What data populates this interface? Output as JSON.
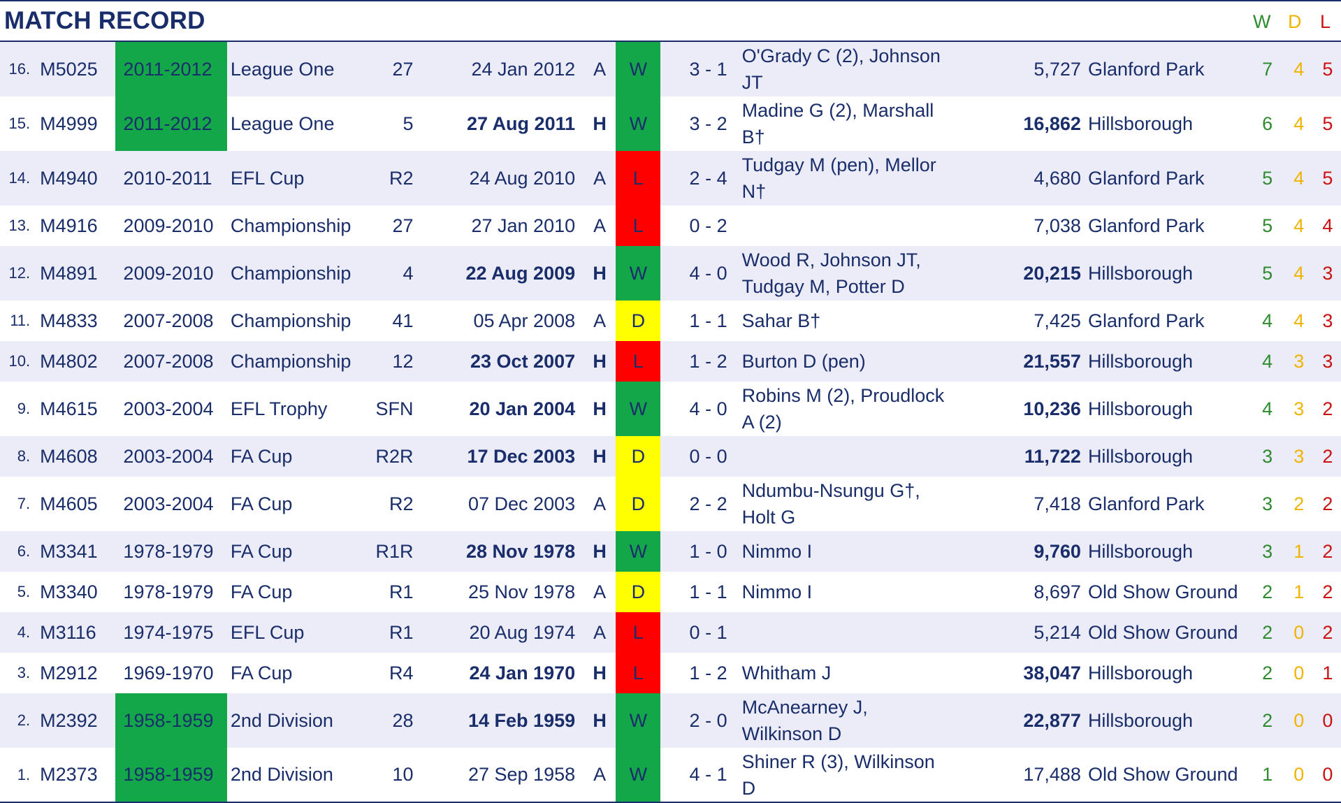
{
  "title": "MATCH RECORD",
  "legend": {
    "w": "W",
    "d": "D",
    "l": "L"
  },
  "colors": {
    "win": "#13a74a",
    "loss": "#ff0000",
    "draw": "#ffff00",
    "navy": "#1a2d6b",
    "row_alt": "#ebecf7"
  },
  "matches": [
    {
      "num": "16.",
      "id": "M5025",
      "season": "2011-2012",
      "season_highlight": true,
      "comp": "League One",
      "round": "27",
      "date": "24 Jan 2012",
      "ha": "A",
      "result": "W",
      "gf": "3",
      "ga": "1",
      "scorers": "O'Grady C (2), Johnson JT",
      "att": "5,727",
      "venue": "Glanford Park",
      "w": "7",
      "d": "4",
      "l": "5"
    },
    {
      "num": "15.",
      "id": "M4999",
      "season": "2011-2012",
      "season_highlight": true,
      "comp": "League One",
      "round": "5",
      "date": "27 Aug 2011",
      "ha": "H",
      "result": "W",
      "gf": "3",
      "ga": "2",
      "scorers": "Madine G (2), Marshall B†",
      "att": "16,862",
      "venue": "Hillsborough",
      "w": "6",
      "d": "4",
      "l": "5"
    },
    {
      "num": "14.",
      "id": "M4940",
      "season": "2010-2011",
      "season_highlight": false,
      "comp": "EFL Cup",
      "round": "R2",
      "date": "24 Aug 2010",
      "ha": "A",
      "result": "L",
      "gf": "2",
      "ga": "4",
      "scorers": "Tudgay M (pen), Mellor N†",
      "att": "4,680",
      "venue": "Glanford Park",
      "w": "5",
      "d": "4",
      "l": "5"
    },
    {
      "num": "13.",
      "id": "M4916",
      "season": "2009-2010",
      "season_highlight": false,
      "comp": "Championship",
      "round": "27",
      "date": "27 Jan 2010",
      "ha": "A",
      "result": "L",
      "gf": "0",
      "ga": "2",
      "scorers": "",
      "att": "7,038",
      "venue": "Glanford Park",
      "w": "5",
      "d": "4",
      "l": "4"
    },
    {
      "num": "12.",
      "id": "M4891",
      "season": "2009-2010",
      "season_highlight": false,
      "comp": "Championship",
      "round": "4",
      "date": "22 Aug 2009",
      "ha": "H",
      "result": "W",
      "gf": "4",
      "ga": "0",
      "scorers": "Wood R, Johnson JT, Tudgay M, Potter D",
      "att": "20,215",
      "venue": "Hillsborough",
      "w": "5",
      "d": "4",
      "l": "3"
    },
    {
      "num": "11.",
      "id": "M4833",
      "season": "2007-2008",
      "season_highlight": false,
      "comp": "Championship",
      "round": "41",
      "date": "05 Apr 2008",
      "ha": "A",
      "result": "D",
      "gf": "1",
      "ga": "1",
      "scorers": "Sahar B†",
      "att": "7,425",
      "venue": "Glanford Park",
      "w": "4",
      "d": "4",
      "l": "3"
    },
    {
      "num": "10.",
      "id": "M4802",
      "season": "2007-2008",
      "season_highlight": false,
      "comp": "Championship",
      "round": "12",
      "date": "23 Oct 2007",
      "ha": "H",
      "result": "L",
      "gf": "1",
      "ga": "2",
      "scorers": "Burton D (pen)",
      "att": "21,557",
      "venue": "Hillsborough",
      "w": "4",
      "d": "3",
      "l": "3"
    },
    {
      "num": "9.",
      "id": "M4615",
      "season": "2003-2004",
      "season_highlight": false,
      "comp": "EFL Trophy",
      "round": "SFN",
      "date": "20 Jan 2004",
      "ha": "H",
      "result": "W",
      "gf": "4",
      "ga": "0",
      "scorers": "Robins M (2), Proudlock A (2)",
      "att": "10,236",
      "venue": "Hillsborough",
      "w": "4",
      "d": "3",
      "l": "2"
    },
    {
      "num": "8.",
      "id": "M4608",
      "season": "2003-2004",
      "season_highlight": false,
      "comp": "FA Cup",
      "round": "R2R",
      "date": "17 Dec 2003",
      "ha": "H",
      "result": "D",
      "gf": "0",
      "ga": "0",
      "scorers": "",
      "att": "11,722",
      "venue": "Hillsborough",
      "w": "3",
      "d": "3",
      "l": "2"
    },
    {
      "num": "7.",
      "id": "M4605",
      "season": "2003-2004",
      "season_highlight": false,
      "comp": "FA Cup",
      "round": "R2",
      "date": "07 Dec 2003",
      "ha": "A",
      "result": "D",
      "gf": "2",
      "ga": "2",
      "scorers": "Ndumbu-Nsungu G†, Holt G",
      "att": "7,418",
      "venue": "Glanford Park",
      "w": "3",
      "d": "2",
      "l": "2"
    },
    {
      "num": "6.",
      "id": "M3341",
      "season": "1978-1979",
      "season_highlight": false,
      "comp": "FA Cup",
      "round": "R1R",
      "date": "28 Nov 1978",
      "ha": "H",
      "result": "W",
      "gf": "1",
      "ga": "0",
      "scorers": "Nimmo I",
      "att": "9,760",
      "venue": "Hillsborough",
      "w": "3",
      "d": "1",
      "l": "2"
    },
    {
      "num": "5.",
      "id": "M3340",
      "season": "1978-1979",
      "season_highlight": false,
      "comp": "FA Cup",
      "round": "R1",
      "date": "25 Nov 1978",
      "ha": "A",
      "result": "D",
      "gf": "1",
      "ga": "1",
      "scorers": "Nimmo I",
      "att": "8,697",
      "venue": "Old Show Ground",
      "w": "2",
      "d": "1",
      "l": "2"
    },
    {
      "num": "4.",
      "id": "M3116",
      "season": "1974-1975",
      "season_highlight": false,
      "comp": "EFL Cup",
      "round": "R1",
      "date": "20 Aug 1974",
      "ha": "A",
      "result": "L",
      "gf": "0",
      "ga": "1",
      "scorers": "",
      "att": "5,214",
      "venue": "Old Show Ground",
      "w": "2",
      "d": "0",
      "l": "2"
    },
    {
      "num": "3.",
      "id": "M2912",
      "season": "1969-1970",
      "season_highlight": false,
      "comp": "FA Cup",
      "round": "R4",
      "date": "24 Jan 1970",
      "ha": "H",
      "result": "L",
      "gf": "1",
      "ga": "2",
      "scorers": "Whitham J",
      "att": "38,047",
      "venue": "Hillsborough",
      "w": "2",
      "d": "0",
      "l": "1"
    },
    {
      "num": "2.",
      "id": "M2392",
      "season": "1958-1959",
      "season_highlight": true,
      "comp": "2nd Division",
      "round": "28",
      "date": "14 Feb 1959",
      "ha": "H",
      "result": "W",
      "gf": "2",
      "ga": "0",
      "scorers": "McAnearney J, Wilkinson D",
      "att": "22,877",
      "venue": "Hillsborough",
      "w": "2",
      "d": "0",
      "l": "0"
    },
    {
      "num": "1.",
      "id": "M2373",
      "season": "1958-1959",
      "season_highlight": true,
      "comp": "2nd Division",
      "round": "10",
      "date": "27 Sep 1958",
      "ha": "A",
      "result": "W",
      "gf": "4",
      "ga": "1",
      "scorers": "Shiner R (3), Wilkinson D",
      "att": "17,488",
      "venue": "Old Show Ground",
      "w": "1",
      "d": "0",
      "l": "0"
    }
  ]
}
